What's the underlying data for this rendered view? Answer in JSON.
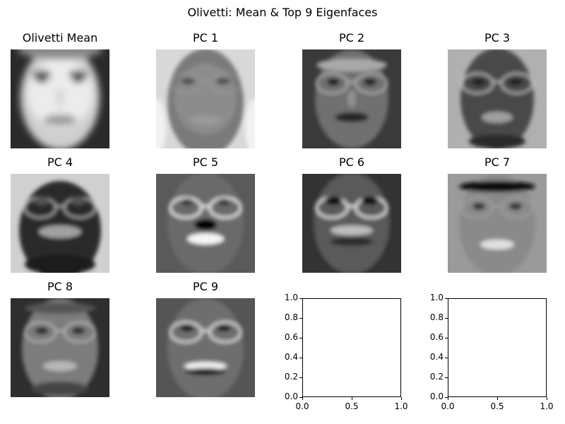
{
  "chart_data": {
    "type": "image-grid",
    "title": "Olivetti: Mean & Top 9 Eigenfaces",
    "grid": {
      "rows": 3,
      "cols": 4
    },
    "panels": [
      {
        "title": "Olivetti Mean",
        "kind": "image",
        "style": "mean"
      },
      {
        "title": "PC 1",
        "kind": "image",
        "style": "pc1"
      },
      {
        "title": "PC 2",
        "kind": "image",
        "style": "pc2"
      },
      {
        "title": "PC 3",
        "kind": "image",
        "style": "pc3"
      },
      {
        "title": "PC 4",
        "kind": "image",
        "style": "pc4"
      },
      {
        "title": "PC 5",
        "kind": "image",
        "style": "pc5"
      },
      {
        "title": "PC 6",
        "kind": "image",
        "style": "pc6"
      },
      {
        "title": "PC 7",
        "kind": "image",
        "style": "pc7"
      },
      {
        "title": "PC 8",
        "kind": "image",
        "style": "pc8"
      },
      {
        "title": "PC 9",
        "kind": "image",
        "style": "pc9"
      },
      {
        "title": "",
        "kind": "empty-axes",
        "xlim": [
          0.0,
          1.0
        ],
        "ylim": [
          0.0,
          1.0
        ],
        "xticks": [
          "0.0",
          "0.5",
          "1.0"
        ],
        "yticks": [
          "0.0",
          "0.2",
          "0.4",
          "0.6",
          "0.8",
          "1.0"
        ]
      },
      {
        "title": "",
        "kind": "empty-axes",
        "xlim": [
          0.0,
          1.0
        ],
        "ylim": [
          0.0,
          1.0
        ],
        "xticks": [
          "0.0",
          "0.5",
          "1.0"
        ],
        "yticks": [
          "0.0",
          "0.2",
          "0.4",
          "0.6",
          "0.8",
          "1.0"
        ]
      }
    ],
    "colormap": "gray"
  }
}
